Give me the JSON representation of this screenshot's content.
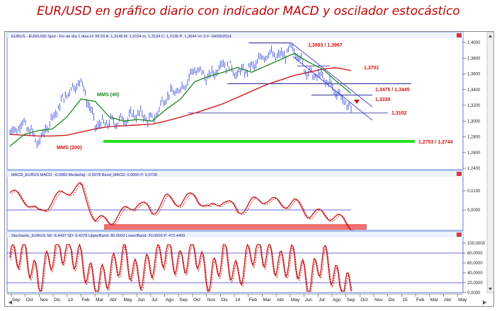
{
  "title": "EUR/USD en gráfico diario con indicador MACD y oscilador estocástico",
  "colors": {
    "price": "#2b3fd6",
    "mms40": "#1a8a1a",
    "mms200": "#d01c1c",
    "support": "#22e022",
    "macd": "#c81414",
    "stoch": "#c81414",
    "guide": "#3a3ad0",
    "label": "#d01010",
    "highlight": "#f07070",
    "frame": "#5a7fd8"
  },
  "panels": {
    "price": {
      "header": "EURUS - EUR/USD Spot - Fin de día 1 días H: 09:29  A: 1,3149  M: 1,3154  m: 1,3134  C: 1,3139  P: 1,3644  Vr: 0  F: 04/09/2014",
      "y_ticks": [
        "1,4000",
        "1,3800",
        "1,3600",
        "1,3400",
        "1,3200",
        "1,3000",
        "1,2800",
        "1,2600",
        "1,2400"
      ],
      "annotations": {
        "mms40": "MMS (40)",
        "mms200": "MMS (200)",
        "top": "1,3993 / 1,3967",
        "r1": "1,3701",
        "r2": "1,3475 / 1,3445",
        "r3": "1,3330",
        "s1": "1,3102",
        "support": "1,2753 / 1,2744"
      }
    },
    "macd": {
      "header": "MACD_EURUS  MACD: -0,0083  MediaSig: -0,0078  Band_MACD: 0,0000  P: 0,0736",
      "y_ticks": [
        "0,0100",
        "0,0000"
      ]
    },
    "stoch": {
      "header": "Stochastic_EURUS  SK: 8,4497  SD: 9,4278  UpperBand: 80,0000  LowerBand: 20,0000  P: 472,4409",
      "y_ticks": [
        "100,0000",
        "80,0000",
        "60,0000",
        "40,0000",
        "20,0000",
        "0,0000"
      ]
    }
  },
  "x_axis": [
    "Sep",
    "Oct",
    "Nov",
    "Dic",
    "13",
    "Feb",
    "Mar",
    "Abr",
    "May",
    "Jun",
    "Jul",
    "Ago",
    "Sep",
    "Oct",
    "Nov",
    "Dic",
    "14",
    "Feb",
    "Mar",
    "Abr",
    "May",
    "Jun",
    "Jul",
    "Ago",
    "Sep",
    "Oct",
    "Nov",
    "Dic",
    "15",
    "Feb",
    "Mar",
    "Abr",
    "May"
  ],
  "chart_data": {
    "type": "line",
    "x": [
      "2012-09",
      "2012-10",
      "2012-11",
      "2012-12",
      "2013-01",
      "2013-02",
      "2013-03",
      "2013-04",
      "2013-05",
      "2013-06",
      "2013-07",
      "2013-08",
      "2013-09",
      "2013-10",
      "2013-11",
      "2013-12",
      "2014-01",
      "2014-02",
      "2014-03",
      "2014-04",
      "2014-05",
      "2014-06",
      "2014-07",
      "2014-08",
      "2014-09"
    ],
    "series": [
      {
        "name": "EUR/USD",
        "values": [
          1.285,
          1.298,
          1.272,
          1.305,
          1.335,
          1.352,
          1.295,
          1.298,
          1.302,
          1.31,
          1.3,
          1.332,
          1.34,
          1.366,
          1.355,
          1.375,
          1.36,
          1.368,
          1.386,
          1.382,
          1.392,
          1.36,
          1.356,
          1.337,
          1.314
        ]
      },
      {
        "name": "MMS (40)",
        "values": [
          1.268,
          1.283,
          1.288,
          1.29,
          1.305,
          1.328,
          1.325,
          1.305,
          1.3,
          1.302,
          1.3,
          1.315,
          1.328,
          1.35,
          1.357,
          1.362,
          1.368,
          1.362,
          1.37,
          1.378,
          1.386,
          1.375,
          1.366,
          1.35,
          1.335
        ]
      },
      {
        "name": "MMS (200)",
        "values": [
          1.283,
          1.282,
          1.281,
          1.281,
          1.282,
          1.286,
          1.29,
          1.293,
          1.294,
          1.295,
          1.296,
          1.3,
          1.305,
          1.31,
          1.316,
          1.322,
          1.33,
          1.338,
          1.346,
          1.352,
          1.358,
          1.362,
          1.366,
          1.368,
          1.364
        ]
      },
      {
        "name": "MACD",
        "values": [
          0.009,
          0.006,
          -0.002,
          0.005,
          0.01,
          0.012,
          -0.005,
          -0.006,
          -0.001,
          0.004,
          -0.001,
          0.006,
          0.004,
          0.008,
          0.0,
          0.006,
          -0.001,
          0.004,
          0.006,
          0.003,
          0.004,
          -0.002,
          -0.002,
          -0.004,
          -0.008
        ]
      },
      {
        "name": "Stochastic",
        "values": [
          70,
          85,
          20,
          80,
          90,
          65,
          15,
          40,
          75,
          30,
          60,
          85,
          55,
          90,
          20,
          80,
          30,
          85,
          80,
          55,
          70,
          15,
          75,
          25,
          8
        ]
      }
    ],
    "ylim": [
      1.24,
      1.4
    ],
    "levels": [
      1.3993,
      1.3967,
      1.3701,
      1.3475,
      1.3445,
      1.333,
      1.3102,
      1.2753,
      1.2744
    ]
  }
}
